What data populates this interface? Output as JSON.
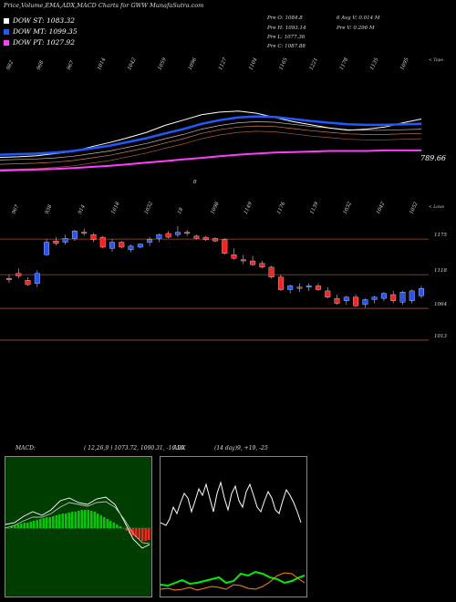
{
  "header": {
    "title": "Price,Volume,EMA,ADX,MACD Charts for GWW MunafaSutra.com"
  },
  "legend": [
    {
      "label": "DOW ST: 1083.32",
      "color": "#ffffff"
    },
    {
      "label": "DOW MT: 1099.35",
      "color": "#1e5aff"
    },
    {
      "label": "DOW PT: 1027.92",
      "color": "#ff3dff"
    }
  ],
  "ohlc": {
    "open": "Pre  O: 1084.8",
    "high": "Pre  H: 1093.14",
    "low": "Pre  L: 1077.36",
    "close": "Pre  C: 1087.88",
    "avg": "6 Avg V: 0.014  M",
    "vol": "Pre  V: 0.296  M"
  },
  "ema_panel": {
    "top_labels": [
      "982",
      "968",
      "967",
      "1014",
      "1042",
      "1059",
      "1096",
      "1127",
      "1104",
      "1165",
      "1221",
      "1178",
      "1135",
      "1095"
    ],
    "bottom_labels": [
      "967",
      "938",
      "914",
      "1018",
      "1032",
      "18",
      "1098",
      "1149",
      "1176",
      "1139",
      "1032",
      "1042",
      "1052"
    ],
    "zero_label": "0",
    "right_top": "< Tops",
    "price_label": "789.66"
  },
  "candle_panel": {
    "right_top": "< Lows",
    "levels": [
      "1175",
      "1118",
      "1064",
      "1013"
    ]
  },
  "macd_panel": {
    "title": "MACD:",
    "params": "( 12,26,9 ) 1073.72,  1090.31,  -16.59"
  },
  "adx_panel": {
    "title": "ADX",
    "params": "(14  day)9, +19, -25"
  },
  "colors": {
    "up": "#2255ff",
    "down": "#ff2020",
    "ema_st": "#ffffff",
    "ema_mt": "#1e5aff",
    "ema_pt": "#ff3dff",
    "macd_hist_up": "#00cc00",
    "macd_hist_down": "#ff2020",
    "adx_plus": "#00ee00",
    "adx_minus": "#ff8800"
  },
  "chart_data": [
    {
      "type": "line",
      "title": "EMA",
      "series": [
        {
          "name": "DOW ST",
          "values": [
            1015,
            1016,
            1018,
            1022,
            1026,
            1035,
            1043,
            1052,
            1062,
            1075,
            1085,
            1095,
            1100,
            1102,
            1098,
            1090,
            1082,
            1076,
            1070,
            1066,
            1068,
            1072,
            1080,
            1087
          ]
        },
        {
          "name": "DOW MT",
          "values": [
            1020,
            1021,
            1022,
            1024,
            1027,
            1032,
            1037,
            1044,
            1051,
            1060,
            1068,
            1078,
            1085,
            1090,
            1092,
            1091,
            1087,
            1083,
            1080,
            1077,
            1076,
            1076,
            1077,
            1078
          ]
        },
        {
          "name": "DOW PT",
          "values": [
            990,
            991,
            992,
            993,
            995,
            997,
            999,
            1002,
            1005,
            1008,
            1011,
            1014,
            1017,
            1020,
            1022,
            1024,
            1025,
            1026,
            1027,
            1027,
            1027,
            1028,
            1028,
            1028
          ]
        }
      ],
      "price_label": 789.66
    },
    {
      "type": "candlestick",
      "title": "Price",
      "levels": [
        1175,
        1118,
        1064,
        1013
      ],
      "candles": [
        [
          1112,
          1118,
          1105,
          1110
        ],
        [
          1120,
          1128,
          1112,
          1116
        ],
        [
          1109,
          1114,
          1100,
          1102
        ],
        [
          1104,
          1125,
          1098,
          1120
        ],
        [
          1150,
          1175,
          1148,
          1170
        ],
        [
          1172,
          1178,
          1165,
          1168
        ],
        [
          1170,
          1182,
          1166,
          1176
        ],
        [
          1176,
          1190,
          1172,
          1188
        ],
        [
          1186,
          1192,
          1180,
          1184
        ],
        [
          1182,
          1185,
          1170,
          1174
        ],
        [
          1178,
          1180,
          1160,
          1162
        ],
        [
          1160,
          1175,
          1155,
          1170
        ],
        [
          1170,
          1172,
          1160,
          1162
        ],
        [
          1158,
          1166,
          1154,
          1164
        ],
        [
          1162,
          1168,
          1160,
          1167
        ],
        [
          1170,
          1178,
          1164,
          1174
        ],
        [
          1176,
          1184,
          1170,
          1182
        ],
        [
          1184,
          1188,
          1176,
          1178
        ],
        [
          1182,
          1196,
          1178,
          1186
        ],
        [
          1186,
          1190,
          1180,
          1184
        ],
        [
          1180,
          1182,
          1174,
          1176
        ],
        [
          1178,
          1180,
          1172,
          1174
        ],
        [
          1176,
          1178,
          1170,
          1172
        ],
        [
          1174,
          1176,
          1150,
          1152
        ],
        [
          1150,
          1160,
          1142,
          1144
        ],
        [
          1142,
          1150,
          1135,
          1140
        ],
        [
          1140,
          1148,
          1132,
          1134
        ],
        [
          1136,
          1140,
          1128,
          1130
        ],
        [
          1130,
          1132,
          1112,
          1114
        ],
        [
          1114,
          1118,
          1092,
          1094
        ],
        [
          1094,
          1102,
          1088,
          1100
        ],
        [
          1098,
          1104,
          1090,
          1096
        ],
        [
          1098,
          1104,
          1092,
          1100
        ],
        [
          1100,
          1104,
          1092,
          1094
        ],
        [
          1092,
          1098,
          1080,
          1082
        ],
        [
          1080,
          1086,
          1070,
          1072
        ],
        [
          1076,
          1084,
          1070,
          1082
        ],
        [
          1082,
          1086,
          1066,
          1068
        ],
        [
          1070,
          1080,
          1065,
          1078
        ],
        [
          1078,
          1084,
          1072,
          1082
        ],
        [
          1080,
          1090,
          1076,
          1088
        ],
        [
          1086,
          1092,
          1072,
          1076
        ],
        [
          1074,
          1092,
          1070,
          1090
        ],
        [
          1076,
          1094,
          1072,
          1092
        ],
        [
          1084,
          1100,
          1080,
          1096
        ]
      ]
    }
  ]
}
